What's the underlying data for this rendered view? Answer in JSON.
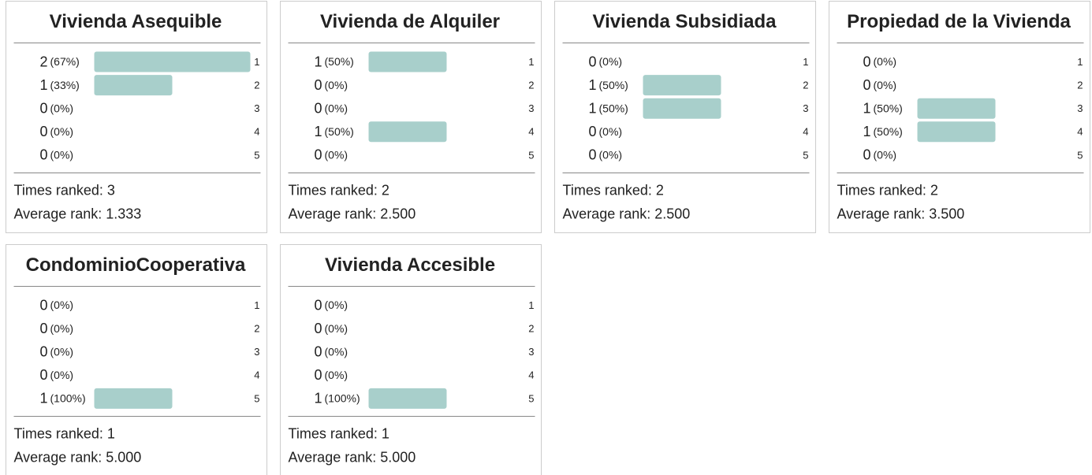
{
  "chart_data": [
    {
      "type": "bar",
      "title": "Vivienda Asequible",
      "categories": [
        "1",
        "2",
        "3",
        "4",
        "5"
      ],
      "values": [
        2,
        1,
        0,
        0,
        0
      ],
      "value_labels": [
        "(67%)",
        "(33%)",
        "(0%)",
        "(0%)",
        "(0%)"
      ],
      "xlim": [
        0,
        2
      ],
      "color": "#a8cfcb",
      "times_ranked": "Times ranked: 3",
      "average_rank": "Average rank: 1.333"
    },
    {
      "type": "bar",
      "title": "Vivienda de Alquiler",
      "categories": [
        "1",
        "2",
        "3",
        "4",
        "5"
      ],
      "values": [
        1,
        0,
        0,
        1,
        0
      ],
      "value_labels": [
        "(50%)",
        "(0%)",
        "(0%)",
        "(50%)",
        "(0%)"
      ],
      "xlim": [
        0,
        2
      ],
      "color": "#a8cfcb",
      "times_ranked": "Times ranked: 2",
      "average_rank": "Average rank: 2.500"
    },
    {
      "type": "bar",
      "title": "Vivienda Subsidiada",
      "categories": [
        "1",
        "2",
        "3",
        "4",
        "5"
      ],
      "values": [
        0,
        1,
        1,
        0,
        0
      ],
      "value_labels": [
        "(0%)",
        "(50%)",
        "(50%)",
        "(0%)",
        "(0%)"
      ],
      "xlim": [
        0,
        2
      ],
      "color": "#a8cfcb",
      "times_ranked": "Times ranked: 2",
      "average_rank": "Average rank: 2.500"
    },
    {
      "type": "bar",
      "title": "Propiedad de la Vivienda",
      "categories": [
        "1",
        "2",
        "3",
        "4",
        "5"
      ],
      "values": [
        0,
        0,
        1,
        1,
        0
      ],
      "value_labels": [
        "(0%)",
        "(0%)",
        "(50%)",
        "(50%)",
        "(0%)"
      ],
      "xlim": [
        0,
        2
      ],
      "color": "#a8cfcb",
      "times_ranked": "Times ranked: 2",
      "average_rank": "Average rank: 3.500"
    },
    {
      "type": "bar",
      "title": "CondominioCooperativa",
      "categories": [
        "1",
        "2",
        "3",
        "4",
        "5"
      ],
      "values": [
        0,
        0,
        0,
        0,
        1
      ],
      "value_labels": [
        "(0%)",
        "(0%)",
        "(0%)",
        "(0%)",
        "(100%)"
      ],
      "xlim": [
        0,
        2
      ],
      "color": "#a8cfcb",
      "times_ranked": "Times ranked: 1",
      "average_rank": "Average rank: 5.000"
    },
    {
      "type": "bar",
      "title": "Vivienda Accesible",
      "categories": [
        "1",
        "2",
        "3",
        "4",
        "5"
      ],
      "values": [
        0,
        0,
        0,
        0,
        1
      ],
      "value_labels": [
        "(0%)",
        "(0%)",
        "(0%)",
        "(0%)",
        "(100%)"
      ],
      "xlim": [
        0,
        2
      ],
      "color": "#a8cfcb",
      "times_ranked": "Times ranked: 1",
      "average_rank": "Average rank: 5.000"
    }
  ]
}
